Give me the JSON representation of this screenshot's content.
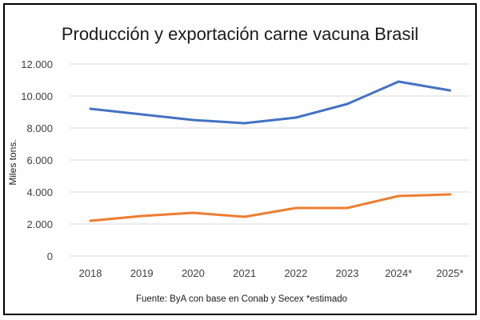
{
  "chart_data": {
    "type": "line",
    "title": "Producción y exportación carne vacuna Brasil",
    "ylabel": "Miles tons.",
    "xlabel": "",
    "categories": [
      "2018",
      "2019",
      "2020",
      "2021",
      "2022",
      "2023",
      "2024*",
      "2025*"
    ],
    "ylim": [
      0,
      12000
    ],
    "yticks": [
      0,
      2000,
      4000,
      6000,
      8000,
      10000,
      12000
    ],
    "ytick_labels": [
      "0",
      "2.000",
      "4.000",
      "6.000",
      "8.000",
      "10.000",
      "12.000"
    ],
    "grid": true,
    "series": [
      {
        "values": [
          9200,
          8850,
          8500,
          8300,
          8650,
          9500,
          10900,
          10350
        ],
        "color": "#4472c4"
      },
      {
        "values": [
          2200,
          2500,
          2700,
          2450,
          3000,
          3000,
          3750,
          3850
        ],
        "color": "#ed7d31"
      }
    ],
    "source": "Fuente: ByA con base en Conab y Secex *estimado"
  }
}
